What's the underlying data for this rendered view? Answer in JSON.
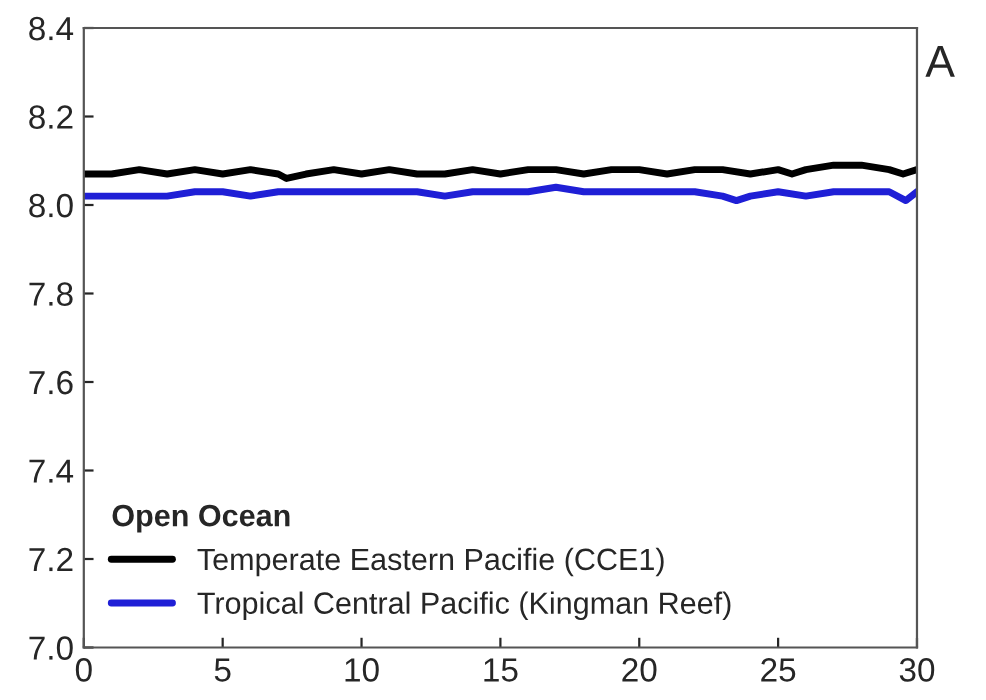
{
  "chart_data": {
    "type": "line",
    "annotations": [
      "A"
    ],
    "legend_title": "Open Ocean",
    "legend": "bottom left",
    "grid": false,
    "xlim": [
      0,
      30
    ],
    "xticks": [
      0,
      5,
      10,
      15,
      20,
      25,
      30
    ],
    "ylim": [
      7.0,
      8.4
    ],
    "yticks": [
      {
        "value": 7.0,
        "label": "7.0"
      },
      7.2,
      7.4,
      7.6,
      7.8,
      {
        "value": 8.0,
        "label": "8.0"
      },
      8.2,
      8.4
    ],
    "series": [
      {
        "name": "Temperate Eastern Pacifie (CCE1)",
        "color": "#000000",
        "x": [
          0,
          1,
          2,
          3,
          4,
          5,
          6,
          7,
          7.3,
          8,
          9,
          10,
          11,
          12,
          13,
          14,
          15,
          16,
          17,
          18,
          19,
          20,
          21,
          22,
          23,
          24,
          25,
          25.5,
          26,
          27,
          28,
          29,
          29.5,
          30
        ],
        "values": [
          8.07,
          8.07,
          8.08,
          8.07,
          8.08,
          8.07,
          8.08,
          8.07,
          8.06,
          8.07,
          8.08,
          8.07,
          8.08,
          8.07,
          8.07,
          8.08,
          8.07,
          8.08,
          8.08,
          8.07,
          8.08,
          8.08,
          8.07,
          8.08,
          8.08,
          8.07,
          8.08,
          8.07,
          8.08,
          8.09,
          8.09,
          8.08,
          8.07,
          8.08
        ]
      },
      {
        "name": "Tropical Central Pacific (Kingman Reef)",
        "color": "#1f1fd6",
        "x": [
          0,
          1,
          2,
          3,
          4,
          5,
          6,
          7,
          8,
          9,
          10,
          11,
          12,
          13,
          14,
          15,
          16,
          17,
          18,
          19,
          20,
          21,
          22,
          23,
          23.5,
          24,
          25,
          26,
          27,
          28,
          29,
          29.6,
          30
        ],
        "values": [
          8.02,
          8.02,
          8.02,
          8.02,
          8.03,
          8.03,
          8.02,
          8.03,
          8.03,
          8.03,
          8.03,
          8.03,
          8.03,
          8.02,
          8.03,
          8.03,
          8.03,
          8.04,
          8.03,
          8.03,
          8.03,
          8.03,
          8.03,
          8.02,
          8.01,
          8.02,
          8.03,
          8.02,
          8.03,
          8.03,
          8.03,
          8.01,
          8.03
        ]
      }
    ]
  }
}
